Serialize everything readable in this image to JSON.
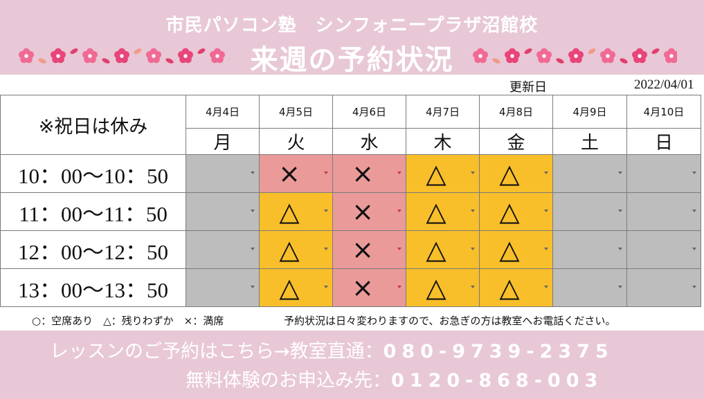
{
  "header": {
    "school": "市民パソコン塾　シンフォニープラザ沼館校",
    "title": "来週の予約状況"
  },
  "updated": {
    "label": "更新日",
    "date": "2022/04/01"
  },
  "table": {
    "note": "※祝日は休み",
    "days": [
      {
        "date": "4月4日",
        "dow": "月"
      },
      {
        "date": "4月5日",
        "dow": "火"
      },
      {
        "date": "4月6日",
        "dow": "水"
      },
      {
        "date": "4月7日",
        "dow": "木"
      },
      {
        "date": "4月8日",
        "dow": "金"
      },
      {
        "date": "4月9日",
        "dow": "土"
      },
      {
        "date": "4月10日",
        "dow": "日"
      }
    ],
    "rows": [
      {
        "time": "10：00〜10：50",
        "slots": [
          "",
          "×",
          "×",
          "△",
          "△",
          "",
          ""
        ]
      },
      {
        "time": "11：00〜11：50",
        "slots": [
          "",
          "△",
          "×",
          "△",
          "△",
          "",
          ""
        ]
      },
      {
        "time": "12：00〜12：50",
        "slots": [
          "",
          "△",
          "×",
          "△",
          "△",
          "",
          ""
        ]
      },
      {
        "time": "13：00〜13：50",
        "slots": [
          "",
          "△",
          "×",
          "△",
          "△",
          "",
          ""
        ]
      }
    ]
  },
  "legend": {
    "symbols": "○：空席あり　△：残りわずか　×：満席",
    "notice": "予約状況は日々変わりますので、お急ぎの方は教室へお電話ください。"
  },
  "footer": {
    "lesson_label": "レッスンのご予約はこちら→教室直通：",
    "lesson_phone": "080-9739-2375",
    "trial_label": "無料体験のお申込み先：",
    "trial_phone": "0120-868-003"
  },
  "colors": {
    "header_bg": "#e8c8d6",
    "closed": "#bdbdbd",
    "full": "#eb9a9a",
    "few": "#f8bf2a"
  }
}
